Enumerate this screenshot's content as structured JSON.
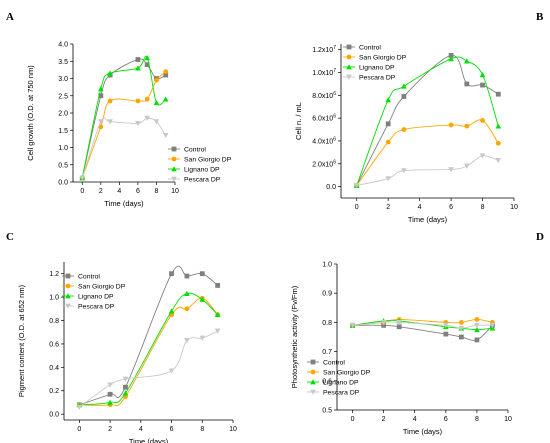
{
  "colors": {
    "Control": "#7f7f7f",
    "San Giorgio DP": "#ffa500",
    "Lignano DP": "#00e000",
    "Pescara DP": "#c8c8c8"
  },
  "markers": {
    "Control": "square",
    "San Giorgio DP": "circle",
    "Lignano DP": "triangle-up",
    "Pescara DP": "triangle-down"
  },
  "chart_data": [
    {
      "panel": "A",
      "type": "line",
      "legend_position": "bottom-right",
      "xlabel": "Time (days)",
      "ylabel": "Cell growth (O.D. at 750 nm)",
      "xlim": [
        -1,
        10
      ],
      "ylim": [
        0,
        4.0
      ],
      "xticks": [
        0,
        2,
        4,
        6,
        8,
        10
      ],
      "yticks": [
        0.0,
        0.5,
        1.0,
        1.5,
        2.0,
        2.5,
        3.0,
        3.5,
        4.0
      ],
      "ytick_labels": [
        "0.0",
        "0.5",
        "1.0",
        "1.5",
        "2.0",
        "2.5",
        "3.0",
        "3.5",
        "4.0"
      ],
      "series": [
        {
          "name": "Control",
          "x": [
            0,
            2,
            3,
            6,
            7,
            8,
            9
          ],
          "y": [
            0.12,
            2.5,
            3.1,
            3.55,
            3.4,
            3.0,
            3.1
          ]
        },
        {
          "name": "San Giorgio DP",
          "x": [
            0,
            2,
            3,
            6,
            7,
            8,
            9
          ],
          "y": [
            0.12,
            1.6,
            2.35,
            2.35,
            2.4,
            2.95,
            3.2
          ]
        },
        {
          "name": "Lignano DP",
          "x": [
            0,
            2,
            3,
            6,
            7,
            8,
            9
          ],
          "y": [
            0.12,
            2.7,
            3.15,
            3.3,
            3.6,
            2.3,
            2.4
          ]
        },
        {
          "name": "Pescara DP",
          "x": [
            0,
            2,
            3,
            6,
            7,
            8,
            9
          ],
          "y": [
            0.12,
            1.75,
            1.75,
            1.7,
            1.85,
            1.75,
            1.35
          ]
        }
      ]
    },
    {
      "panel": "B",
      "type": "line",
      "legend_position": "top-left",
      "xlabel": "Time (days)",
      "ylabel": "Cell n. / mL",
      "xlim": [
        -1,
        10
      ],
      "ylim": [
        -1000000,
        12500000
      ],
      "xticks": [
        0,
        2,
        4,
        6,
        8,
        10
      ],
      "yticks": [
        0,
        2000000,
        4000000,
        6000000,
        8000000,
        10000000,
        12000000
      ],
      "ytick_labels": [
        "0.0",
        "2.0x10^6",
        "4.0x10^6",
        "6.0x10^6",
        "8.0x10^6",
        "1.0x10^7",
        "1.2x10^7"
      ],
      "series": [
        {
          "name": "Control",
          "x": [
            0,
            2,
            3,
            6,
            7,
            8,
            9
          ],
          "y": [
            100000,
            5500000,
            7900000,
            11500000,
            9000000,
            8900000,
            8100000
          ]
        },
        {
          "name": "San Giorgio DP",
          "x": [
            0,
            2,
            3,
            6,
            7,
            8,
            9
          ],
          "y": [
            100000,
            3900000,
            5000000,
            5400000,
            5300000,
            5800000,
            3800000
          ]
        },
        {
          "name": "Lignano DP",
          "x": [
            0,
            2,
            3,
            6,
            7,
            8,
            9
          ],
          "y": [
            100000,
            7600000,
            8800000,
            11200000,
            11000000,
            9800000,
            5300000
          ]
        },
        {
          "name": "Pescara DP",
          "x": [
            0,
            2,
            3,
            6,
            7,
            8,
            9
          ],
          "y": [
            100000,
            700000,
            1400000,
            1500000,
            1800000,
            2700000,
            2300000
          ]
        }
      ]
    },
    {
      "panel": "C",
      "type": "line",
      "legend_position": "top-left",
      "xlabel": "Time (days)",
      "ylabel": "Pigment content (O.D. at 652 nm)",
      "xlim": [
        -1,
        10
      ],
      "ylim": [
        -0.05,
        1.3
      ],
      "xticks": [
        0,
        2,
        4,
        6,
        8,
        10
      ],
      "yticks": [
        0.0,
        0.2,
        0.4,
        0.6,
        0.8,
        1.0,
        1.2
      ],
      "ytick_labels": [
        "0.0",
        "0.2",
        "0.4",
        "0.6",
        "0.8",
        "1.0",
        "1.2"
      ],
      "series": [
        {
          "name": "Control",
          "x": [
            0,
            2,
            3,
            6,
            7,
            8,
            9
          ],
          "y": [
            0.08,
            0.17,
            0.23,
            1.2,
            1.18,
            1.2,
            1.1
          ]
        },
        {
          "name": "San Giorgio DP",
          "x": [
            0,
            2,
            3,
            6,
            7,
            8,
            9
          ],
          "y": [
            0.08,
            0.08,
            0.15,
            0.85,
            0.9,
            0.99,
            0.85
          ]
        },
        {
          "name": "Lignano DP",
          "x": [
            0,
            2,
            3,
            6,
            7,
            8,
            9
          ],
          "y": [
            0.08,
            0.1,
            0.18,
            0.88,
            1.03,
            0.98,
            0.85
          ]
        },
        {
          "name": "Pescara DP",
          "x": [
            0,
            2,
            3,
            6,
            7,
            8,
            9
          ],
          "y": [
            0.06,
            0.25,
            0.3,
            0.37,
            0.63,
            0.65,
            0.71
          ]
        }
      ]
    },
    {
      "panel": "D",
      "type": "line",
      "legend_position": "bottom-left",
      "xlabel": "Time (days)",
      "ylabel": "Photosynthetic activity (Fv/Fm)",
      "xlim": [
        -1,
        10
      ],
      "ylim": [
        0.5,
        1.0
      ],
      "xticks": [
        0,
        2,
        4,
        6,
        8,
        10
      ],
      "yticks": [
        0.5,
        0.6,
        0.7,
        0.8,
        0.9,
        1.0
      ],
      "ytick_labels": [
        "0.5",
        "0.6",
        "0.7",
        "0.8",
        "0.9",
        "1.0"
      ],
      "series": [
        {
          "name": "Control",
          "x": [
            0,
            2,
            3,
            6,
            7,
            8,
            9
          ],
          "y": [
            0.79,
            0.79,
            0.785,
            0.76,
            0.75,
            0.74,
            0.79
          ]
        },
        {
          "name": "San Giorgio DP",
          "x": [
            0,
            2,
            3,
            6,
            7,
            8,
            9
          ],
          "y": [
            0.79,
            0.8,
            0.81,
            0.8,
            0.8,
            0.81,
            0.8
          ]
        },
        {
          "name": "Lignano DP",
          "x": [
            0,
            2,
            3,
            6,
            7,
            8,
            9
          ],
          "y": [
            0.79,
            0.805,
            0.805,
            0.785,
            0.78,
            0.775,
            0.78
          ]
        },
        {
          "name": "Pescara DP",
          "x": [
            0,
            2,
            3,
            6,
            7,
            8,
            9
          ],
          "y": [
            0.79,
            0.8,
            0.8,
            0.79,
            0.78,
            0.79,
            0.79
          ]
        }
      ]
    }
  ]
}
